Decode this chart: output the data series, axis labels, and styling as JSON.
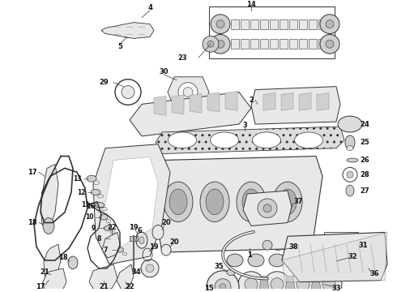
{
  "bg_color": "#ffffff",
  "line_color": "#333333",
  "fig_width": 4.9,
  "fig_height": 3.6,
  "dpi": 100,
  "parts": {
    "label_fontsize": 6.0,
    "label_color": "#111111"
  }
}
